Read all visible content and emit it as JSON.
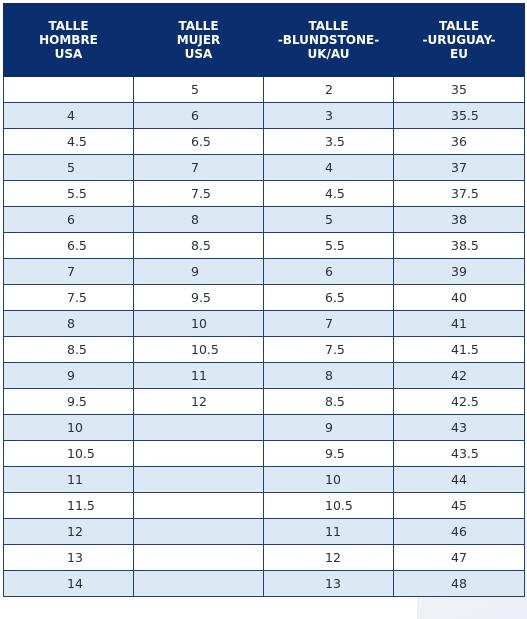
{
  "headers": [
    [
      "TALLE",
      "HOMBRE",
      "USA"
    ],
    [
      "TALLE",
      "MUJER",
      "USA"
    ],
    [
      "TALLE",
      "-BLUNDSTONE-",
      "UK/AU"
    ],
    [
      "TALLE",
      "-URUGUAY-",
      "EU"
    ]
  ],
  "rows": [
    [
      "",
      "5",
      "2",
      "35"
    ],
    [
      "4",
      "6",
      "3",
      "35.5"
    ],
    [
      "4.5",
      "6.5",
      "3.5",
      "36"
    ],
    [
      "5",
      "7",
      "4",
      "37"
    ],
    [
      "5.5",
      "7.5",
      "4.5",
      "37.5"
    ],
    [
      "6",
      "8",
      "5",
      "38"
    ],
    [
      "6.5",
      "8.5",
      "5.5",
      "38.5"
    ],
    [
      "7",
      "9",
      "6",
      "39"
    ],
    [
      "7.5",
      "9.5",
      "6.5",
      "40"
    ],
    [
      "8",
      "10",
      "7",
      "41"
    ],
    [
      "8.5",
      "10.5",
      "7.5",
      "41.5"
    ],
    [
      "9",
      "11",
      "8",
      "42"
    ],
    [
      "9.5",
      "12",
      "8.5",
      "42.5"
    ],
    [
      "10",
      "",
      "9",
      "43"
    ],
    [
      "10.5",
      "",
      "9.5",
      "43.5"
    ],
    [
      "11",
      "",
      "10",
      "44"
    ],
    [
      "11.5",
      "",
      "10.5",
      "45"
    ],
    [
      "12",
      "",
      "11",
      "46"
    ],
    [
      "13",
      "",
      "12",
      "47"
    ],
    [
      "14",
      "",
      "13",
      "48"
    ]
  ],
  "colors": {
    "header_bg": "#0b2f6e",
    "header_text": "#ffffff",
    "row_alt": "#dde8f5",
    "border": "#1f3f78"
  }
}
